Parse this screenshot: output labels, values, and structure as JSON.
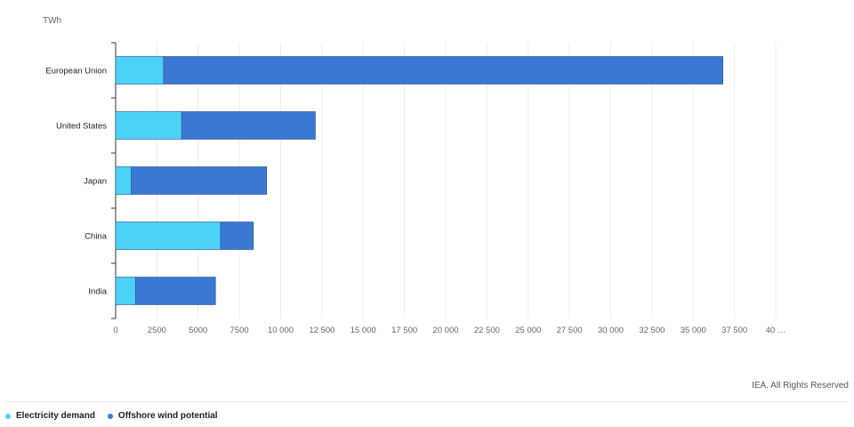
{
  "chart_data": {
    "type": "bar",
    "orientation": "horizontal",
    "stacked": true,
    "unit_label": "TWh",
    "categories": [
      "European Union",
      "United States",
      "Japan",
      "China",
      "India"
    ],
    "series": [
      {
        "name": "Electricity demand",
        "color": "#4dd2f7",
        "values": [
          2900,
          4000,
          950,
          6350,
          1200
        ]
      },
      {
        "name": "Offshore wind potential",
        "color": "#3a78d4",
        "values": [
          33900,
          8100,
          8200,
          2000,
          4850
        ]
      }
    ],
    "xlim": [
      0,
      40000
    ],
    "x_ticks": [
      "0",
      "2500",
      "5000",
      "7500",
      "10 000",
      "12 500",
      "15 000",
      "17 500",
      "20 000",
      "22 500",
      "25 000",
      "27 500",
      "30 000",
      "32 500",
      "35 000",
      "37 500",
      "40 …"
    ],
    "grid": true,
    "legend_position": "bottom-left"
  },
  "footer": {
    "credit": "IEA. All Rights Reserved"
  }
}
